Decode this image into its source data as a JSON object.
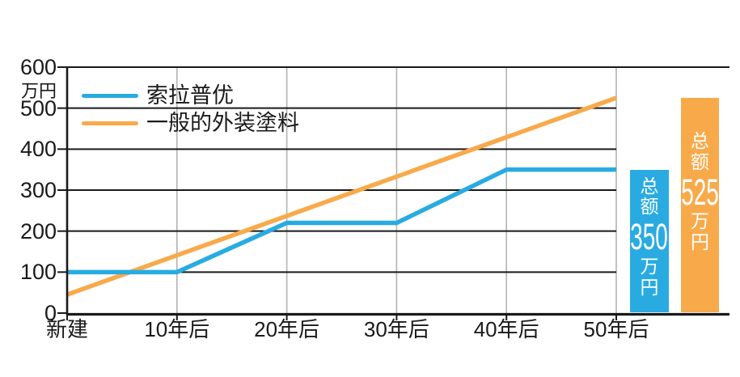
{
  "chart_data": {
    "type": "line",
    "title": "",
    "ylabel_unit": "万円",
    "categories": [
      "新建",
      "10年后",
      "20年后",
      "30年后",
      "40年后",
      "50年后"
    ],
    "ylim": [
      0,
      600
    ],
    "yticks": [
      600,
      500,
      400,
      300,
      200,
      100,
      0
    ],
    "grid": true,
    "legend_position": "top-left",
    "series": [
      {
        "name": "索拉普优",
        "color": "#29ABE2",
        "interpolation": "step-profile",
        "values": [
          100,
          100,
          220,
          220,
          350,
          350
        ]
      },
      {
        "name": "一般的外装塗料",
        "color": "#F8AA4B",
        "interpolation": "linear",
        "values": [
          45,
          141,
          237,
          333,
          429,
          525
        ]
      }
    ],
    "totals": [
      {
        "series": "索拉普优",
        "label": "总额",
        "amount": "350",
        "unit": "万円",
        "value": 350,
        "color": "#29ABE2"
      },
      {
        "series": "一般的外装塗料",
        "label": "总额",
        "amount": "525",
        "unit": "万円",
        "value": 525,
        "color": "#F8AA4B"
      }
    ],
    "axis_color": "#1a1a1a",
    "vgrid_color": "#b3b3b3"
  }
}
